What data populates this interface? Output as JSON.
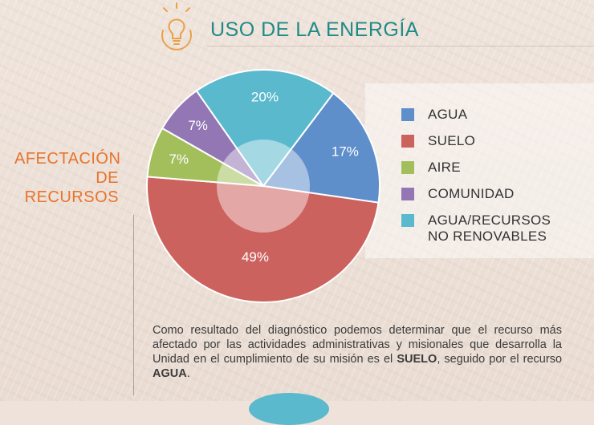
{
  "header": {
    "title": "USO DE LA ENERGÍA"
  },
  "side_title": {
    "line1": "AFECTACIÓN",
    "line2": "DE RECURSOS"
  },
  "chart_data": {
    "type": "pie",
    "categories": [
      "AGUA",
      "SUELO",
      "AIRE",
      "COMUNIDAD",
      "AGUA/RECURSOS\nNO RENOVABLES"
    ],
    "values": [
      17,
      49,
      7,
      7,
      20
    ],
    "labels": [
      "17%",
      "49%",
      "7%",
      "7%",
      "20%"
    ],
    "colors": [
      "#5f8fcb",
      "#cc625e",
      "#a3bf5c",
      "#9377b5",
      "#5ab9cd"
    ],
    "legend_position": "right"
  },
  "legend": {
    "items": [
      {
        "label": "AGUA",
        "color": "#5f8fcb"
      },
      {
        "label": "SUELO",
        "color": "#cc625e"
      },
      {
        "label": "AIRE",
        "color": "#a3bf5c"
      },
      {
        "label": "COMUNIDAD",
        "color": "#9377b5"
      },
      {
        "label": "AGUA/RECURSOS\nNO RENOVABLES",
        "color": "#5ab9cd"
      }
    ]
  },
  "paragraph": {
    "part1": "Como resultado del diagnóstico podemos determinar que el recurso más afectado por las actividades administrativas y misionales que desarrolla la Unidad en el cumplimiento de su misión es el ",
    "bold1": "SUELO",
    "part2": ", seguido por el recurso ",
    "bold2": "AGUA",
    "part3": "."
  }
}
